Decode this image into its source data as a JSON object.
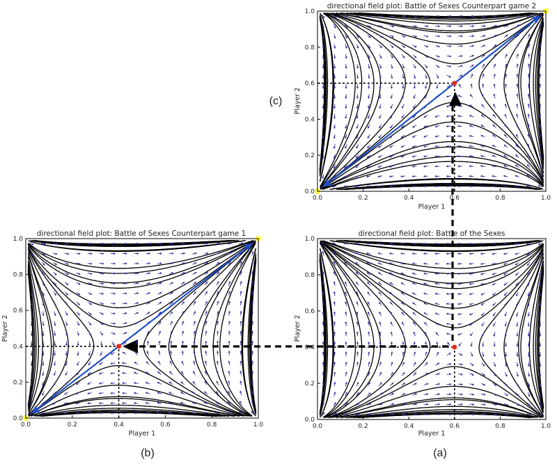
{
  "colors": {
    "arrow": "#2f2f9e",
    "stream": "#000000",
    "diagonal": "#1f4fc6",
    "equilibrium": "#e8291c",
    "corner": "#ffff33",
    "guide": "#000000"
  },
  "chart_data": [
    {
      "id": "c",
      "type": "vector_field",
      "panel_label": "(c)",
      "title": "directional field plot: Battle of Sexes Counterpart game 2",
      "xlabel": "Player 1",
      "ylabel": "Player 2",
      "xlim": [
        0,
        1
      ],
      "ylim": [
        0,
        1
      ],
      "xticks": [
        "0.0",
        "0.2",
        "0.4",
        "0.6",
        "0.8",
        "1.0"
      ],
      "yticks": [
        "0.0",
        "0.2",
        "0.4",
        "0.6",
        "0.8",
        "1.0"
      ],
      "equilibrium": [
        0.6,
        0.6
      ],
      "stable_direction": "diagonal",
      "corners": [
        [
          0,
          0
        ],
        [
          1,
          1
        ]
      ],
      "grid": false
    },
    {
      "id": "b",
      "type": "vector_field",
      "panel_label": "(b)",
      "title": "directional field plot: Battle of Sexes Counterpart game 1",
      "xlabel": "Player 1",
      "ylabel": "Player 2",
      "xlim": [
        0,
        1
      ],
      "ylim": [
        0,
        1
      ],
      "xticks": [
        "0.0",
        "0.2",
        "0.4",
        "0.6",
        "0.8",
        "1.0"
      ],
      "yticks": [
        "0.0",
        "0.2",
        "0.4",
        "0.6",
        "0.8",
        "1.0"
      ],
      "equilibrium": [
        0.4,
        0.4
      ],
      "stable_direction": "diagonal",
      "corners": [
        [
          0,
          0
        ],
        [
          1,
          1
        ]
      ],
      "grid": false
    },
    {
      "id": "a",
      "type": "vector_field",
      "panel_label": "(a)",
      "title": "directional field plot: Battle of the Sexes",
      "xlabel": "Player 1",
      "ylabel": "Player 2",
      "xlim": [
        0,
        1
      ],
      "ylim": [
        0,
        1
      ],
      "xticks": [
        "0.0",
        "0.2",
        "0.4",
        "0.6",
        "0.8",
        "1.0"
      ],
      "yticks": [
        "0.0",
        "0.2",
        "0.4",
        "0.6",
        "0.8",
        "1.0"
      ],
      "equilibrium": [
        0.6,
        0.4
      ],
      "stable_direction": "anti-diagonal",
      "corners": [],
      "grid": false
    }
  ]
}
